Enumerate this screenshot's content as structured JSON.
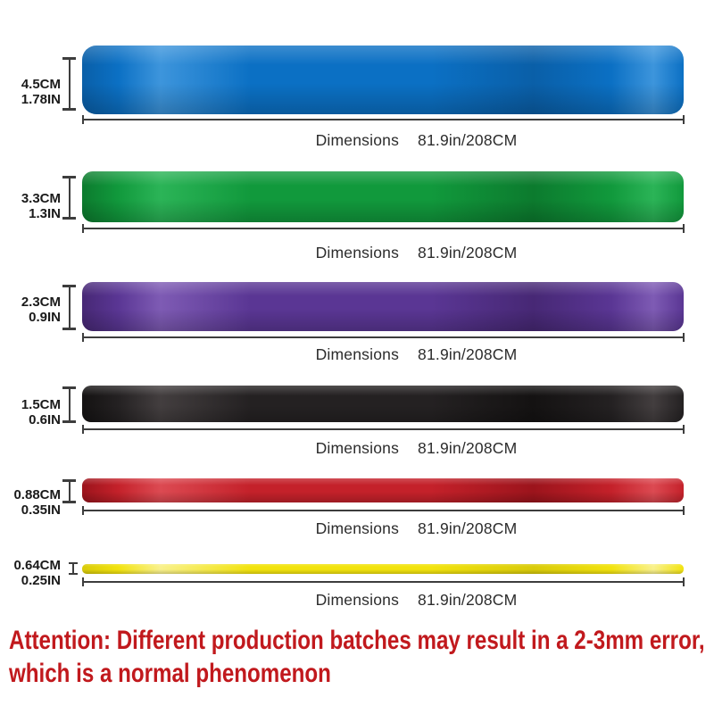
{
  "dimensions_label": "Dimensions",
  "bands": [
    {
      "id": "blue",
      "width_cm": "4.5CM",
      "width_in": "1.78IN",
      "dimensions_label": "Dimensions",
      "length": "81.9in/208CM",
      "colors": {
        "base": "#0B70C4",
        "light": "#3D95DC",
        "dark": "#0A5FA8"
      }
    },
    {
      "id": "green",
      "width_cm": "3.3CM",
      "width_in": "1.3IN",
      "dimensions_label": "Dimensions",
      "length": "81.9in/208CM",
      "colors": {
        "base": "#11993C",
        "light": "#2BB457",
        "dark": "#0C7B2E"
      }
    },
    {
      "id": "purple",
      "width_cm": "2.3CM",
      "width_in": "0.9IN",
      "dimensions_label": "Dimensions",
      "length": "81.9in/208CM",
      "colors": {
        "base": "#5A3694",
        "light": "#7E5BB4",
        "dark": "#472875"
      }
    },
    {
      "id": "black",
      "width_cm": "1.5CM",
      "width_in": "0.6IN",
      "dimensions_label": "Dimensions",
      "length": "81.9in/208CM",
      "colors": {
        "base": "#242122",
        "light": "#433E3F",
        "dark": "#141212"
      }
    },
    {
      "id": "red",
      "width_cm": "0.88CM",
      "width_in": "0.35IN",
      "dimensions_label": "Dimensions",
      "length": "81.9in/208CM",
      "colors": {
        "base": "#C4212A",
        "light": "#DC4A52",
        "dark": "#9C141C"
      }
    },
    {
      "id": "yellow",
      "width_cm": "0.64CM",
      "width_in": "0.25IN",
      "dimensions_label": "Dimensions",
      "length": "81.9in/208CM",
      "colors": {
        "base": "#F2E30E",
        "light": "#F9F18C",
        "dark": "#D9CB0A"
      }
    }
  ],
  "attention": {
    "line1": "Attention: Different production batches may result in a 2-3mm error,",
    "line2": "which is a normal phenomenon",
    "color": "#C1191D"
  }
}
